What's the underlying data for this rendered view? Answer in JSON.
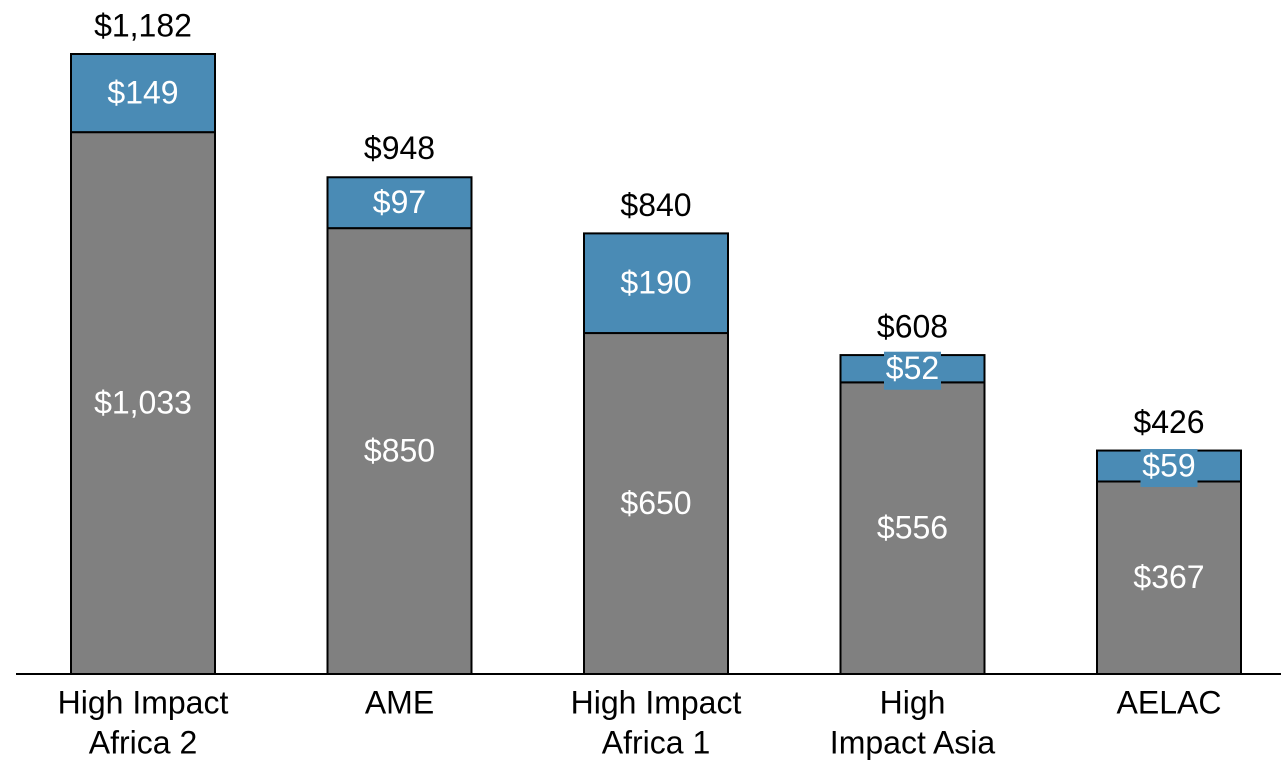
{
  "chart_data": {
    "type": "bar",
    "stacked": true,
    "categories": [
      [
        "High Impact",
        "Africa 2"
      ],
      [
        "AME"
      ],
      [
        "High Impact",
        "Africa 1"
      ],
      [
        "High",
        "Impact Asia"
      ],
      [
        "AELAC"
      ]
    ],
    "series": [
      {
        "color": "#808080",
        "values": [
          1033,
          850,
          650,
          556,
          367
        ],
        "labels": [
          "$1,033",
          "$850",
          "$650",
          "$556",
          "$367"
        ]
      },
      {
        "color": "#4a8bb5",
        "values": [
          149,
          97,
          190,
          52,
          59
        ],
        "labels": [
          "$149",
          "$97",
          "$190",
          "$52",
          "$59"
        ]
      }
    ],
    "totals": [
      1182,
      948,
      840,
      608,
      426
    ],
    "total_labels": [
      "$1,182",
      "$948",
      "$840",
      "$608",
      "$426"
    ],
    "ylim": [
      0,
      1182
    ],
    "grid": false,
    "legend": "none"
  }
}
